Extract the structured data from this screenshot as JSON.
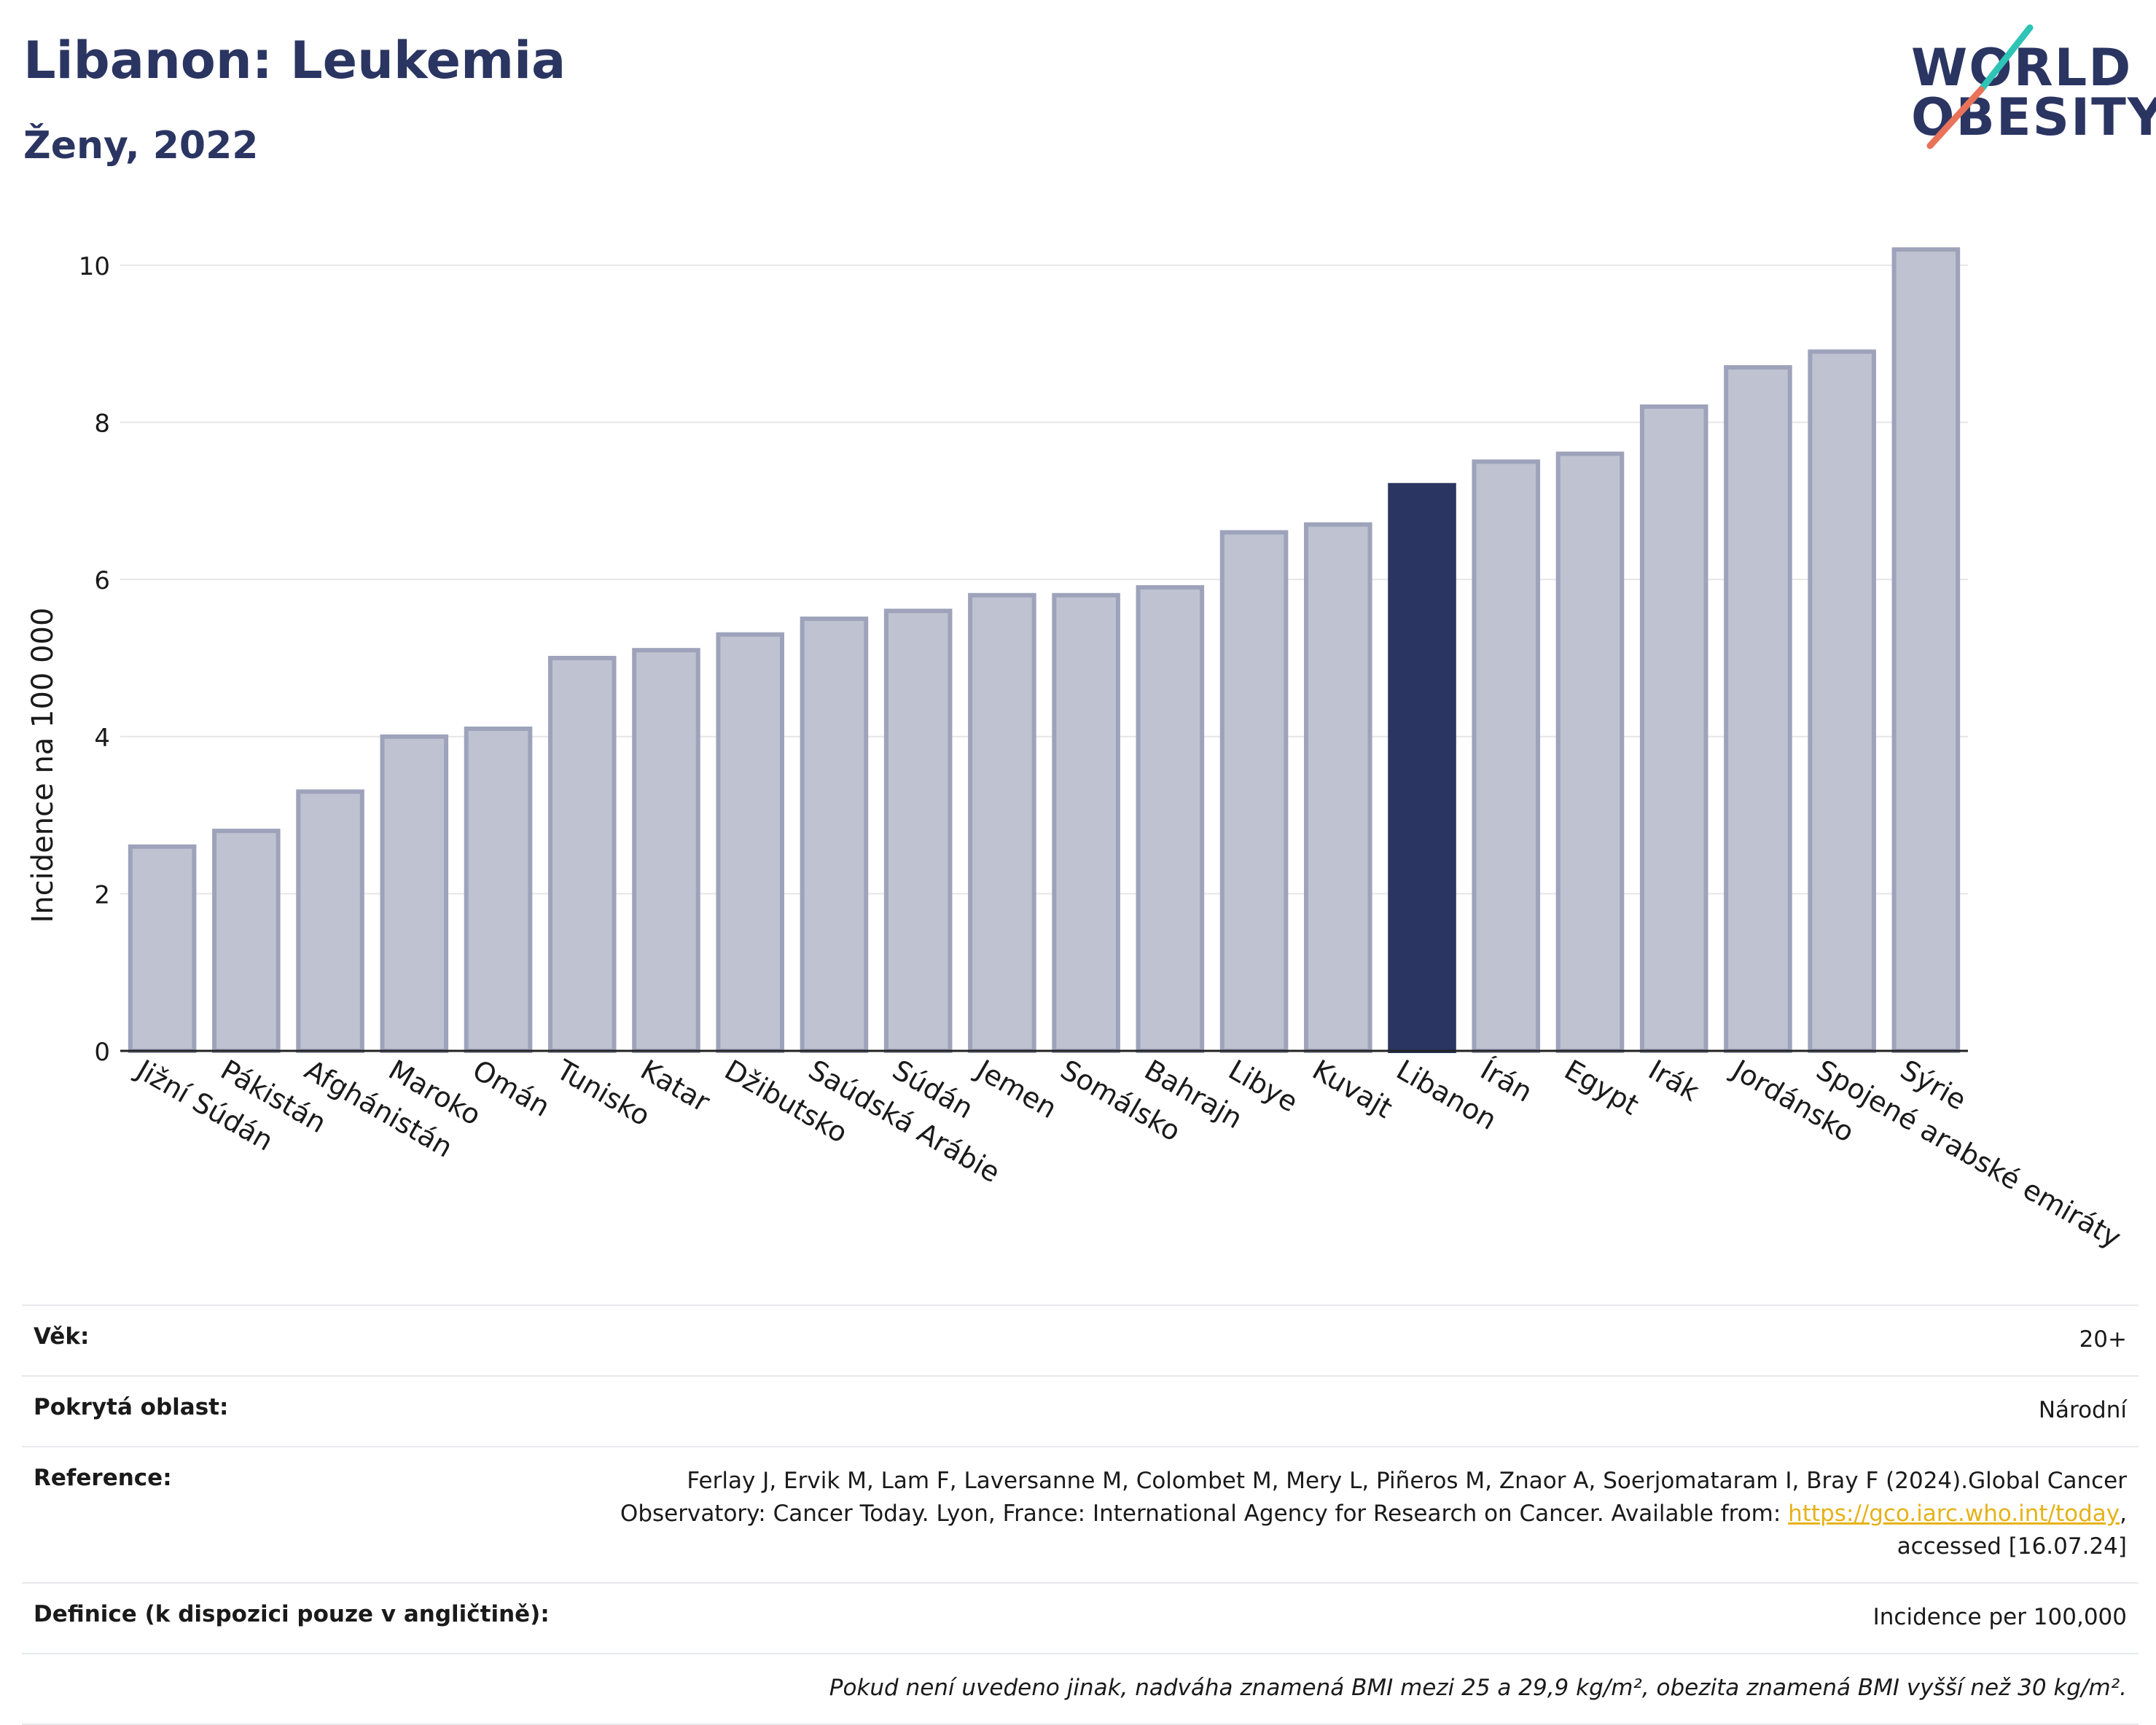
{
  "header": {
    "title": "Libanon: Leukemia",
    "subtitle": "Ženy, 2022"
  },
  "logo": {
    "line1": "WORLD",
    "line2": "OBESITY",
    "colors": {
      "text": "#2b3562",
      "slash_teal": "#2ec4b6",
      "slash_coral": "#e8735a"
    }
  },
  "colors": {
    "bar": "#bfc2d0",
    "bar_border": "#9ea3bb",
    "highlight": "#2b3562",
    "grid": "#e6e6e6"
  },
  "chart_data": {
    "type": "bar",
    "title": "Libanon: Leukemia",
    "subtitle": "Ženy, 2022",
    "xlabel": "",
    "ylabel": "Incidence na 100 000",
    "ylim": [
      0,
      10.5
    ],
    "yticks": [
      0,
      2,
      4,
      6,
      8,
      10
    ],
    "grid": true,
    "legend": "none",
    "highlight": "Libanon",
    "categories": [
      "Jižní Súdán",
      "Pákistán",
      "Afghánistán",
      "Maroko",
      "Omán",
      "Tunisko",
      "Katar",
      "Džibutsko",
      "Saúdská Arábie",
      "Súdán",
      "Jemen",
      "Somálsko",
      "Bahrajn",
      "Libye",
      "Kuvajt",
      "Libanon",
      "Írán",
      "Egypt",
      "Irák",
      "Jordánsko",
      "Spojené arabské emiráty",
      "Sýrie"
    ],
    "values": [
      2.6,
      2.8,
      3.3,
      4.0,
      4.1,
      5.0,
      5.1,
      5.3,
      5.5,
      5.6,
      5.8,
      5.8,
      5.9,
      6.6,
      6.7,
      7.2,
      7.5,
      7.6,
      8.2,
      8.7,
      8.9,
      10.2
    ]
  },
  "info": {
    "age_label": "Věk:",
    "age_value": "20+",
    "area_label": "Pokrytá oblast:",
    "area_value": "Národní",
    "ref_label": "Reference:",
    "ref_line1": "Ferlay J, Ervik M, Lam F, Laversanne M, Colombet M, Mery L, Piñeros M, Znaor A, Soerjomataram I, Bray F (2024).Global Cancer",
    "ref_line2": "Observatory: Cancer Today. Lyon, France: International Agency for Research on Cancer. Available from: ",
    "ref_link": "https://gco.iarc.who.int/today",
    "ref_line2_end": ",",
    "ref_line3": "accessed [16.07.24]",
    "def_label": "Definice (k dispozici pouze v angličtině):",
    "def_value": "Incidence per 100,000",
    "note": "Pokud není uvedeno jinak, nadváha znamená BMI mezi 25 a 29,9 kg/m², obezita znamená BMI vyšší než 30 kg/m²."
  }
}
